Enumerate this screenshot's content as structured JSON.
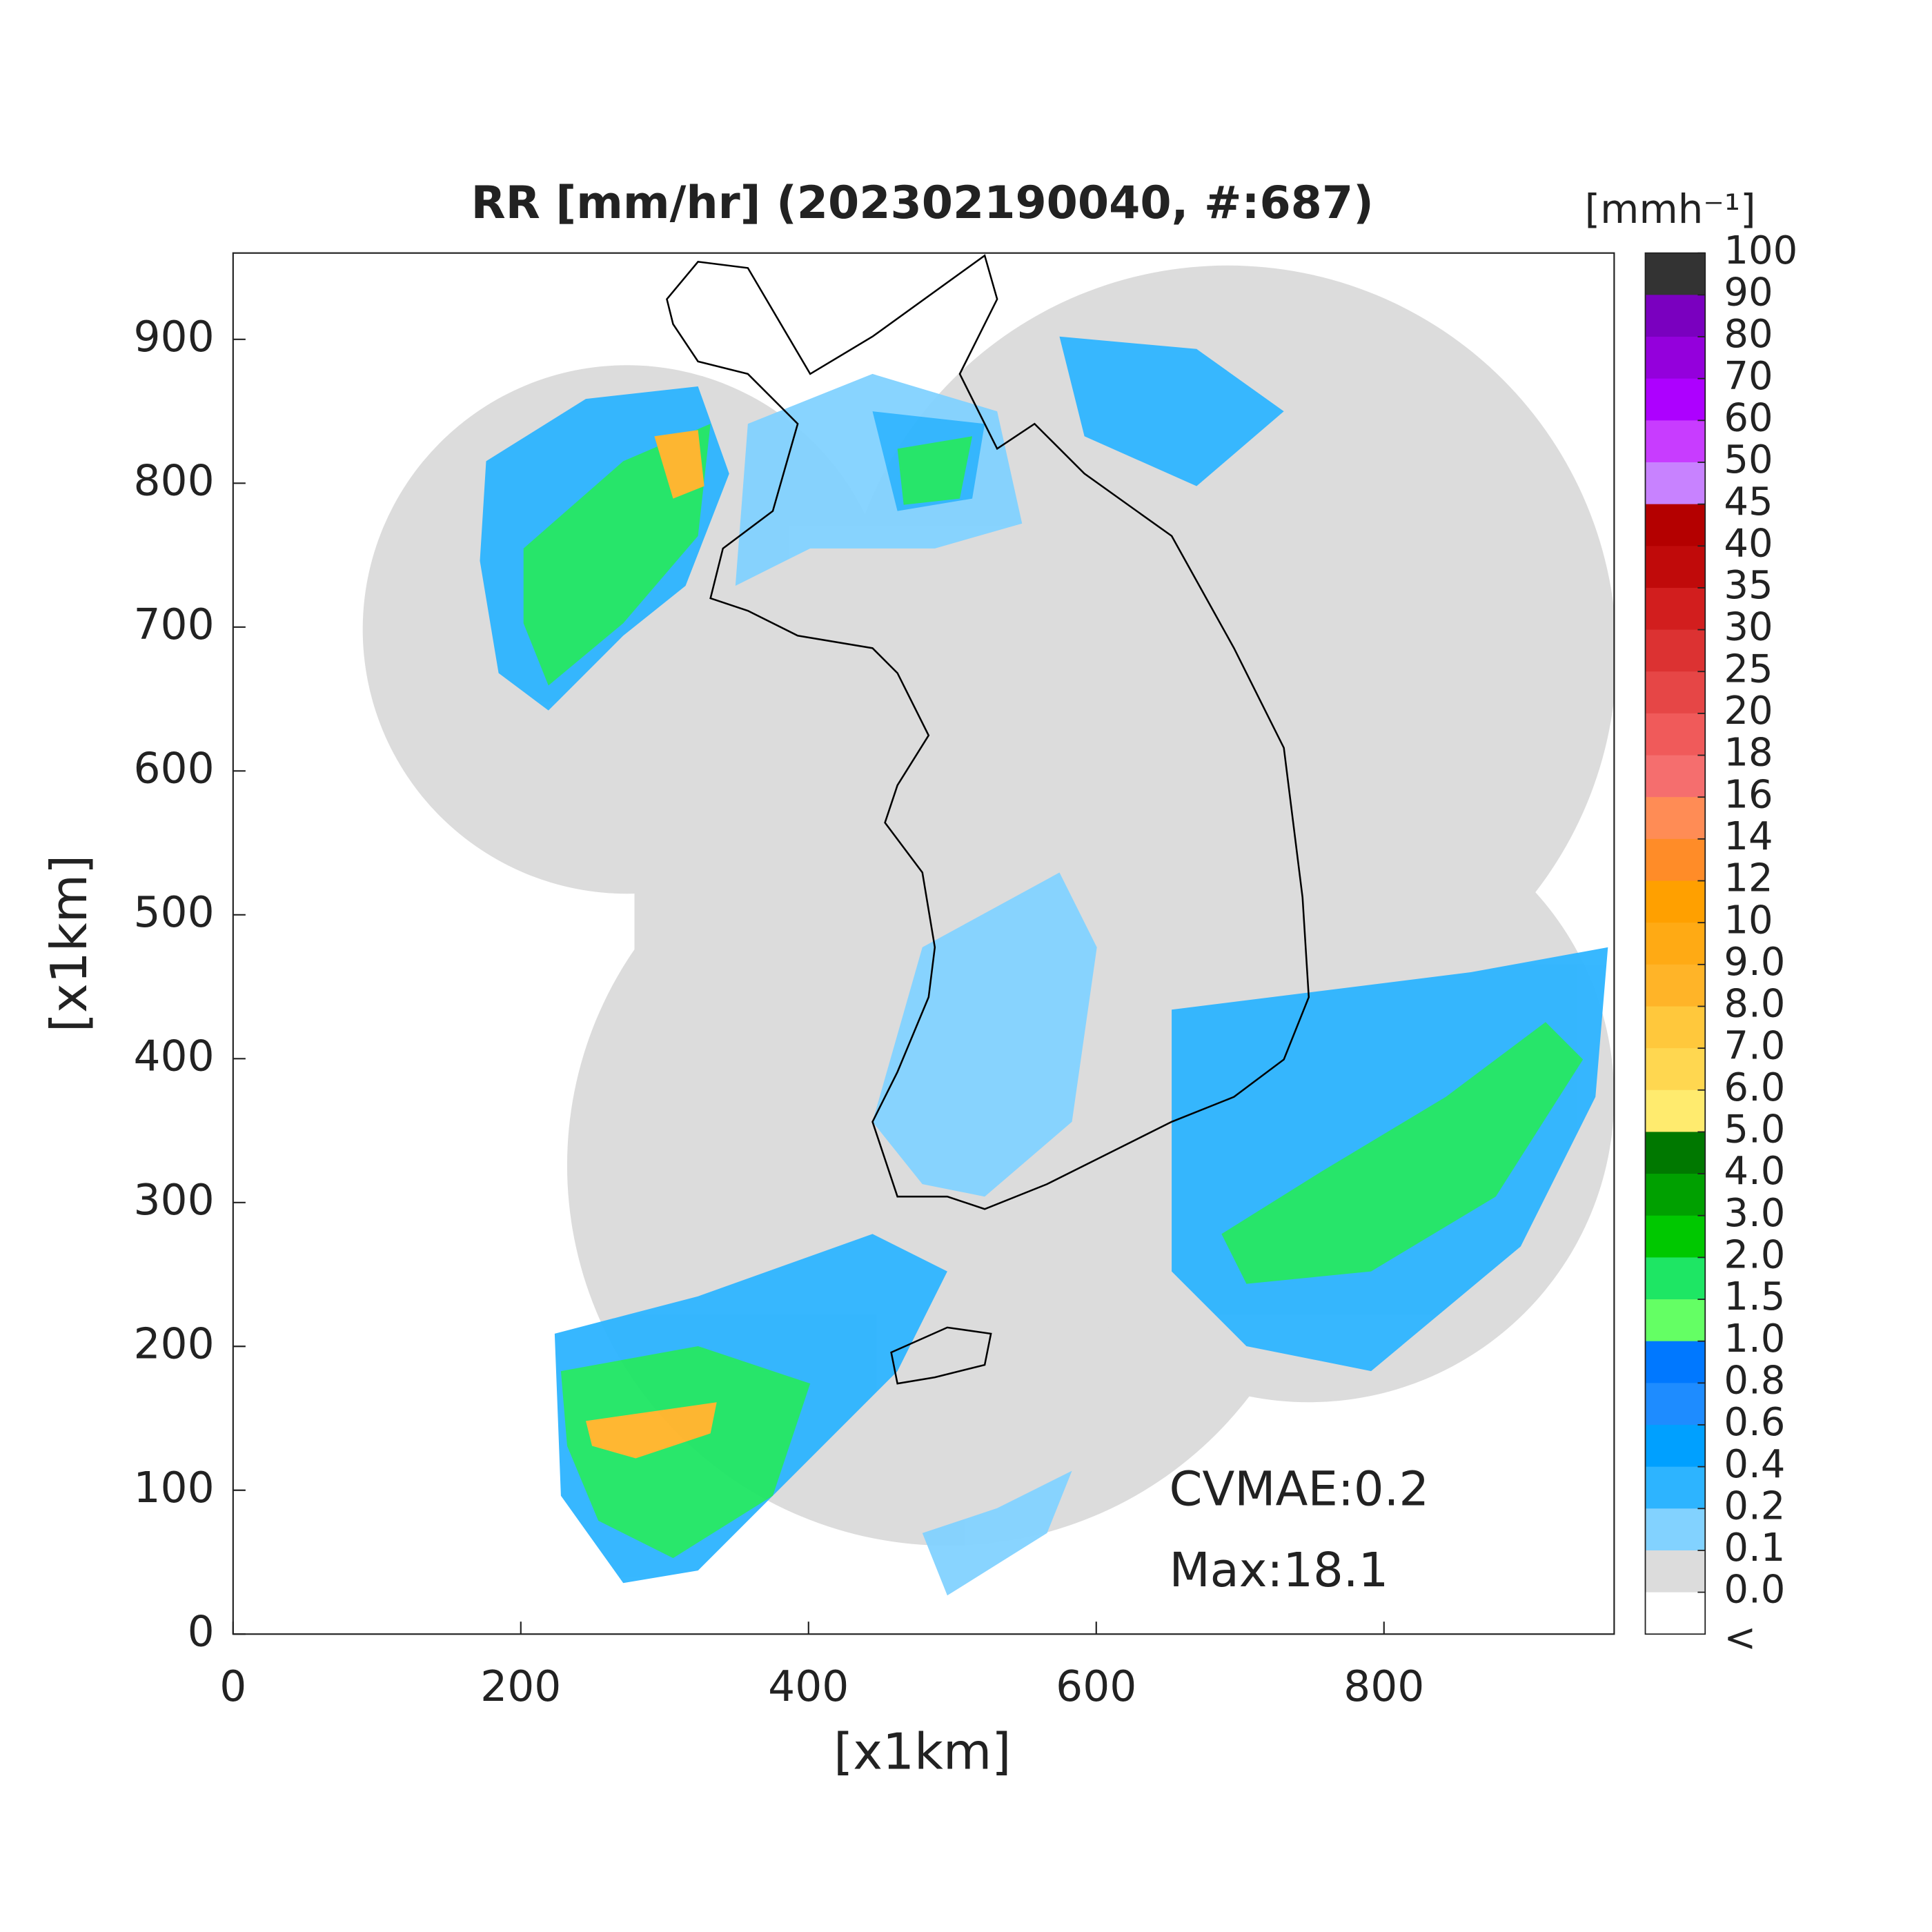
{
  "map": {
    "title": "RR [mm/hr] (202302190040, #:687)",
    "x_label": "[x1km]",
    "y_label": "[x1km]",
    "xlim": [
      0,
      960
    ],
    "ylim": [
      0,
      960
    ],
    "xticks": [
      0,
      200,
      400,
      600,
      800
    ],
    "yticks": [
      0,
      100,
      200,
      300,
      400,
      500,
      600,
      700,
      800,
      900
    ],
    "annotations": [
      "CVMAE:0.2",
      "Max:18.1"
    ],
    "colorbar": {
      "unit": "[mmh⁻¹]",
      "levels": [
        100,
        90,
        80,
        70,
        60,
        50,
        45,
        40,
        35,
        30,
        25,
        20,
        18,
        16,
        14,
        12,
        10,
        {
          "value": 9,
          "label": "9.0"
        },
        {
          "value": 8,
          "label": "8.0"
        },
        {
          "value": 7,
          "label": "7.0"
        },
        {
          "value": 6,
          "label": "6.0"
        },
        {
          "value": 5,
          "label": "5.0"
        },
        {
          "value": 4,
          "label": "4.0"
        },
        {
          "value": 3,
          "label": "3.0"
        },
        {
          "value": 2,
          "label": "2.0"
        },
        1.5,
        {
          "value": 1,
          "label": "1.0"
        },
        0.8,
        0.6,
        0.4,
        0.2,
        0.1,
        {
          "value": 0,
          "label": "0.0"
        }
      ],
      "below_label": "<",
      "colors": [
        "#333333",
        "#7a00bf",
        "#9400dc",
        "#ad00ff",
        "#c83cff",
        "#c882ff",
        "#b40000",
        "#c00a0a",
        "#d21e1e",
        "#dc3232",
        "#e64646",
        "#f05a5a",
        "#f56e6e",
        "#ff8c55",
        "#ff8c28",
        "#ffa000",
        "#ffaa14",
        "#ffb428",
        "#ffc83c",
        "#ffd750",
        "#ffeb6e",
        "#007800",
        "#00a000",
        "#00c800",
        "#1ee664",
        "#64ff64",
        "#0078ff",
        "#1e8cff",
        "#00a0ff",
        "#2db4ff",
        "#82d2ff",
        "#dcdcdc",
        "#ffffff"
      ]
    }
  }
}
